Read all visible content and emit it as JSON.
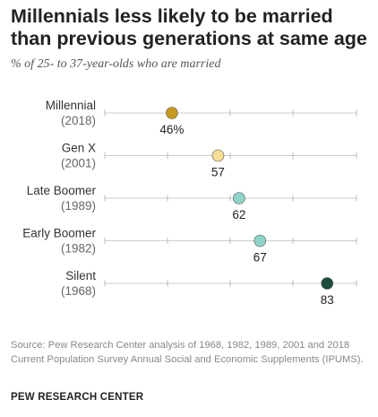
{
  "chart_data": {
    "type": "scatter",
    "title": "Millennials less likely to be married than previous generations at same age",
    "subtitle": "% of 25- to 37-year-olds who are married",
    "x_range": [
      30,
      90
    ],
    "grid": false,
    "series": [
      {
        "generation": "Millennial",
        "year": "(2018)",
        "value": 46,
        "label": "46%",
        "color": "#c79a1f"
      },
      {
        "generation": "Gen X",
        "year": "(2001)",
        "value": 57,
        "label": "57",
        "color": "#f6dc96"
      },
      {
        "generation": "Late Boomer",
        "year": "(1989)",
        "value": 62,
        "label": "62",
        "color": "#8fd4c8"
      },
      {
        "generation": "Early Boomer",
        "year": "(1982)",
        "value": 67,
        "label": "67",
        "color": "#8fd4c8"
      },
      {
        "generation": "Silent",
        "year": "(1968)",
        "value": 83,
        "label": "83",
        "color": "#1b4d3e"
      }
    ]
  },
  "source": "Source: Pew Research Center analysis of 1968, 1982, 1989, 2001 and 2018 Current Population Survey Annual Social and Economic Supplements (IPUMS).",
  "brand": "PEW RESEARCH CENTER"
}
